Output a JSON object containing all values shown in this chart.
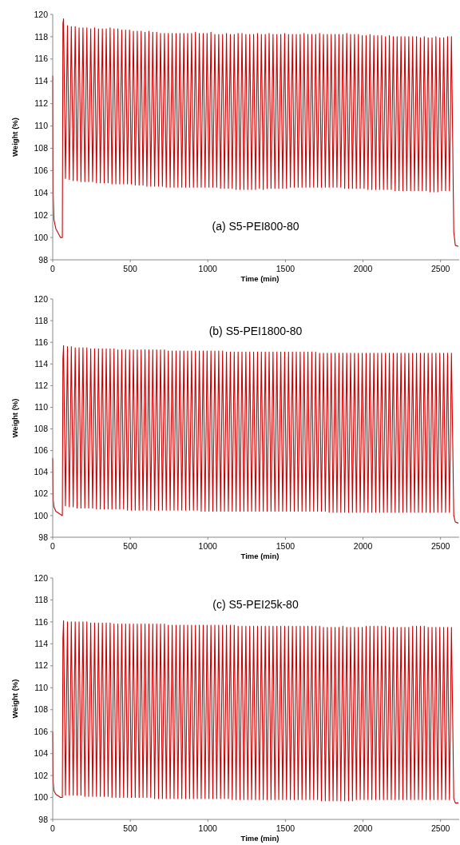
{
  "chart_data": [
    {
      "type": "line",
      "title": "(a) S5-PEI800-80",
      "xlabel": "Time (min)",
      "ylabel": "Weight (%)",
      "xlim": [
        0,
        2620
      ],
      "ylim": [
        98,
        120
      ],
      "xticks": [
        0,
        500,
        1000,
        1500,
        2000,
        2500
      ],
      "yticks": [
        98,
        100,
        102,
        104,
        106,
        108,
        110,
        112,
        114,
        116,
        118,
        120
      ],
      "x": [
        0,
        3,
        8,
        20,
        50,
        62,
        66,
        70,
        82,
        95,
        107,
        120,
        132,
        145,
        157,
        170,
        182,
        195,
        207,
        220,
        232,
        245,
        257,
        270,
        282,
        295,
        307,
        320,
        332,
        345,
        357,
        370,
        382,
        395,
        407,
        420,
        432,
        445,
        457,
        470,
        482,
        495,
        507,
        520,
        532,
        545,
        557,
        570,
        582,
        595,
        607,
        620,
        632,
        645,
        657,
        670,
        682,
        695,
        707,
        720,
        732,
        745,
        757,
        770,
        782,
        795,
        807,
        820,
        832,
        845,
        857,
        870,
        882,
        895,
        907,
        920,
        932,
        945,
        957,
        970,
        982,
        995,
        1007,
        1020,
        1032,
        1045,
        1057,
        1070,
        1082,
        1095,
        1107,
        1120,
        1132,
        1145,
        1157,
        1170,
        1182,
        1195,
        1207,
        1220,
        1232,
        1245,
        1257,
        1270,
        1282,
        1295,
        1307,
        1320,
        1332,
        1345,
        1357,
        1370,
        1382,
        1395,
        1407,
        1420,
        1432,
        1445,
        1457,
        1470,
        1482,
        1495,
        1507,
        1520,
        1532,
        1545,
        1557,
        1570,
        1582,
        1595,
        1607,
        1620,
        1632,
        1645,
        1657,
        1670,
        1682,
        1695,
        1707,
        1720,
        1732,
        1745,
        1757,
        1770,
        1782,
        1795,
        1807,
        1820,
        1832,
        1845,
        1857,
        1870,
        1882,
        1895,
        1907,
        1920,
        1932,
        1945,
        1957,
        1970,
        1982,
        1995,
        2007,
        2020,
        2032,
        2045,
        2057,
        2070,
        2082,
        2095,
        2107,
        2120,
        2132,
        2145,
        2157,
        2170,
        2182,
        2195,
        2207,
        2220,
        2232,
        2245,
        2257,
        2270,
        2282,
        2295,
        2307,
        2320,
        2332,
        2345,
        2357,
        2370,
        2382,
        2395,
        2407,
        2420,
        2432,
        2445,
        2457,
        2470,
        2482,
        2495,
        2507,
        2520,
        2532,
        2545,
        2557,
        2570,
        2585,
        2595,
        2615
      ],
      "series": [
        {
          "color": "#cc0000",
          "values": [
            114.5,
            104,
            101.6,
            100.8,
            100,
            100,
            119.2,
            119.6,
            105.3,
            119.0,
            105.2,
            118.9,
            105.1,
            118.9,
            105.1,
            118.8,
            105.0,
            118.8,
            105.0,
            118.8,
            105.0,
            118.7,
            105.0,
            118.8,
            104.9,
            118.7,
            104.9,
            118.7,
            104.9,
            118.7,
            104.9,
            118.8,
            104.8,
            118.7,
            104.8,
            118.7,
            104.8,
            118.6,
            104.8,
            118.6,
            104.8,
            118.6,
            104.8,
            118.5,
            104.7,
            118.5,
            104.7,
            118.5,
            104.7,
            118.4,
            104.6,
            118.5,
            104.6,
            118.4,
            104.6,
            118.4,
            104.6,
            118.3,
            104.6,
            118.3,
            104.5,
            118.3,
            104.5,
            118.3,
            104.5,
            118.3,
            104.5,
            118.3,
            104.5,
            118.3,
            104.5,
            118.3,
            104.5,
            118.3,
            104.5,
            118.4,
            104.5,
            118.3,
            104.5,
            118.3,
            104.5,
            118.3,
            104.5,
            118.4,
            104.5,
            118.2,
            104.5,
            118.2,
            104.4,
            118.2,
            104.4,
            118.3,
            104.4,
            118.2,
            104.4,
            118.2,
            104.3,
            118.3,
            104.3,
            118.3,
            104.3,
            118.2,
            104.3,
            118.2,
            104.3,
            118.2,
            104.3,
            118.3,
            104.4,
            118.2,
            104.3,
            118.2,
            104.4,
            118.3,
            104.4,
            118.2,
            104.4,
            118.2,
            104.4,
            118.2,
            104.4,
            118.3,
            104.4,
            118.2,
            104.5,
            118.2,
            104.5,
            118.2,
            104.5,
            118.2,
            104.5,
            118.3,
            104.5,
            118.2,
            104.5,
            118.2,
            104.5,
            118.2,
            104.5,
            118.3,
            104.5,
            118.2,
            104.5,
            118.2,
            104.5,
            118.2,
            104.5,
            118.2,
            104.5,
            118.2,
            104.5,
            118.2,
            104.4,
            118.3,
            104.4,
            118.2,
            104.4,
            118.2,
            104.4,
            118.2,
            104.4,
            118.1,
            104.4,
            118.1,
            104.3,
            118.2,
            104.3,
            118.1,
            104.3,
            118.1,
            104.3,
            118.1,
            104.3,
            118.0,
            104.3,
            118.1,
            104.3,
            118.0,
            104.2,
            118.0,
            104.2,
            118.0,
            104.2,
            118.0,
            104.2,
            118.0,
            104.2,
            118.0,
            104.2,
            118.0,
            104.2,
            117.9,
            104.2,
            118.0,
            104.2,
            117.9,
            104.1,
            117.9,
            104.1,
            118.0,
            104.1,
            117.9,
            104.2,
            117.9,
            104.2,
            118.0,
            104.2,
            118.0,
            100.5,
            99.3,
            99.2
          ]
        }
      ]
    },
    {
      "type": "line",
      "title": "(b) S5-PEI1800-80",
      "xlabel": "Time (min)",
      "ylabel": "Weight (%)",
      "xlim": [
        0,
        2620
      ],
      "ylim": [
        98,
        120
      ],
      "xticks": [
        0,
        500,
        1000,
        1500,
        2000,
        2500
      ],
      "yticks": [
        98,
        100,
        102,
        104,
        106,
        108,
        110,
        112,
        114,
        116,
        118,
        120
      ],
      "x": [
        0,
        3,
        8,
        20,
        50,
        62,
        66,
        70,
        82,
        95,
        107,
        120,
        132,
        145,
        157,
        170,
        182,
        195,
        207,
        220,
        232,
        245,
        257,
        270,
        282,
        295,
        307,
        320,
        332,
        345,
        357,
        370,
        382,
        395,
        407,
        420,
        432,
        445,
        457,
        470,
        482,
        495,
        507,
        520,
        532,
        545,
        557,
        570,
        582,
        595,
        607,
        620,
        632,
        645,
        657,
        670,
        682,
        695,
        707,
        720,
        732,
        745,
        757,
        770,
        782,
        795,
        807,
        820,
        832,
        845,
        857,
        870,
        882,
        895,
        907,
        920,
        932,
        945,
        957,
        970,
        982,
        995,
        1007,
        1020,
        1032,
        1045,
        1057,
        1070,
        1082,
        1095,
        1107,
        1120,
        1132,
        1145,
        1157,
        1170,
        1182,
        1195,
        1207,
        1220,
        1232,
        1245,
        1257,
        1270,
        1282,
        1295,
        1307,
        1320,
        1332,
        1345,
        1357,
        1370,
        1382,
        1395,
        1407,
        1420,
        1432,
        1445,
        1457,
        1470,
        1482,
        1495,
        1507,
        1520,
        1532,
        1545,
        1557,
        1570,
        1582,
        1595,
        1607,
        1620,
        1632,
        1645,
        1657,
        1670,
        1682,
        1695,
        1707,
        1720,
        1732,
        1745,
        1757,
        1770,
        1782,
        1795,
        1807,
        1820,
        1832,
        1845,
        1857,
        1870,
        1882,
        1895,
        1907,
        1920,
        1932,
        1945,
        1957,
        1970,
        1982,
        1995,
        2007,
        2020,
        2032,
        2045,
        2057,
        2070,
        2082,
        2095,
        2107,
        2120,
        2132,
        2145,
        2157,
        2170,
        2182,
        2195,
        2207,
        2220,
        2232,
        2245,
        2257,
        2270,
        2282,
        2295,
        2307,
        2320,
        2332,
        2345,
        2357,
        2370,
        2382,
        2395,
        2407,
        2420,
        2432,
        2445,
        2457,
        2470,
        2482,
        2495,
        2507,
        2520,
        2532,
        2545,
        2557,
        2570,
        2585,
        2595,
        2615
      ],
      "series": [
        {
          "color": "#cc0000",
          "values": [
            105.3,
            101.5,
            100.8,
            100.4,
            100.1,
            100.0,
            114.5,
            115.7,
            100.9,
            115.6,
            100.8,
            115.6,
            100.8,
            115.5,
            100.7,
            115.5,
            100.7,
            115.5,
            100.7,
            115.5,
            100.7,
            115.4,
            100.7,
            115.4,
            100.6,
            115.4,
            100.6,
            115.4,
            100.6,
            115.4,
            100.6,
            115.4,
            100.6,
            115.4,
            100.6,
            115.3,
            100.6,
            115.3,
            100.6,
            115.3,
            100.5,
            115.3,
            100.5,
            115.3,
            100.5,
            115.3,
            100.5,
            115.3,
            100.5,
            115.3,
            100.5,
            115.3,
            100.5,
            115.3,
            100.5,
            115.3,
            100.5,
            115.3,
            100.5,
            115.3,
            100.5,
            115.2,
            100.5,
            115.2,
            100.5,
            115.2,
            100.5,
            115.2,
            100.5,
            115.2,
            100.5,
            115.2,
            100.5,
            115.2,
            100.5,
            115.2,
            100.5,
            115.2,
            100.4,
            115.2,
            100.4,
            115.2,
            100.4,
            115.2,
            100.4,
            115.2,
            100.4,
            115.2,
            100.4,
            115.2,
            100.4,
            115.1,
            100.4,
            115.1,
            100.4,
            115.1,
            100.4,
            115.1,
            100.4,
            115.1,
            100.4,
            115.1,
            100.4,
            115.1,
            100.4,
            115.1,
            100.4,
            115.1,
            100.4,
            115.1,
            100.4,
            115.1,
            100.4,
            115.1,
            100.4,
            115.1,
            100.4,
            115.1,
            100.4,
            115.1,
            100.4,
            115.1,
            100.4,
            115.1,
            100.4,
            115.1,
            100.4,
            115.1,
            100.4,
            115.1,
            100.4,
            115.1,
            100.4,
            115.1,
            100.4,
            115.1,
            100.4,
            115.1,
            100.4,
            115.0,
            100.4,
            115.0,
            100.4,
            115.0,
            100.3,
            115.0,
            100.3,
            115.0,
            100.3,
            115.0,
            100.3,
            115.0,
            100.3,
            115.0,
            100.3,
            115.0,
            100.3,
            115.0,
            100.3,
            115.0,
            100.3,
            115.0,
            100.3,
            115.0,
            100.3,
            115.0,
            100.3,
            115.0,
            100.3,
            115.0,
            100.3,
            115.0,
            100.3,
            115.0,
            100.3,
            115.0,
            100.3,
            115.0,
            100.3,
            115.0,
            100.3,
            115.0,
            100.3,
            115.0,
            100.3,
            115.0,
            100.3,
            115.0,
            100.3,
            115.0,
            100.3,
            115.0,
            100.3,
            115.0,
            100.3,
            115.0,
            100.3,
            115.0,
            100.3,
            115.0,
            100.3,
            115.0,
            100.3,
            115.0,
            100.3,
            115.0,
            100.3,
            115.0,
            100.0,
            99.4,
            99.3
          ]
        }
      ]
    },
    {
      "type": "line",
      "title": "(c) S5-PEI25k-80",
      "xlabel": "Time (min)",
      "ylabel": "Weight (%)",
      "xlim": [
        0,
        2620
      ],
      "ylim": [
        98,
        120
      ],
      "xticks": [
        0,
        500,
        1000,
        1500,
        2000,
        2500
      ],
      "yticks": [
        98,
        100,
        102,
        104,
        106,
        108,
        110,
        112,
        114,
        116,
        118,
        120
      ],
      "x": [
        0,
        3,
        8,
        20,
        50,
        62,
        66,
        70,
        82,
        95,
        107,
        120,
        132,
        145,
        157,
        170,
        182,
        195,
        207,
        220,
        232,
        245,
        257,
        270,
        282,
        295,
        307,
        320,
        332,
        345,
        357,
        370,
        382,
        395,
        407,
        420,
        432,
        445,
        457,
        470,
        482,
        495,
        507,
        520,
        532,
        545,
        557,
        570,
        582,
        595,
        607,
        620,
        632,
        645,
        657,
        670,
        682,
        695,
        707,
        720,
        732,
        745,
        757,
        770,
        782,
        795,
        807,
        820,
        832,
        845,
        857,
        870,
        882,
        895,
        907,
        920,
        932,
        945,
        957,
        970,
        982,
        995,
        1007,
        1020,
        1032,
        1045,
        1057,
        1070,
        1082,
        1095,
        1107,
        1120,
        1132,
        1145,
        1157,
        1170,
        1182,
        1195,
        1207,
        1220,
        1232,
        1245,
        1257,
        1270,
        1282,
        1295,
        1307,
        1320,
        1332,
        1345,
        1357,
        1370,
        1382,
        1395,
        1407,
        1420,
        1432,
        1445,
        1457,
        1470,
        1482,
        1495,
        1507,
        1520,
        1532,
        1545,
        1557,
        1570,
        1582,
        1595,
        1607,
        1620,
        1632,
        1645,
        1657,
        1670,
        1682,
        1695,
        1707,
        1720,
        1732,
        1745,
        1757,
        1770,
        1782,
        1795,
        1807,
        1820,
        1832,
        1845,
        1857,
        1870,
        1882,
        1895,
        1907,
        1920,
        1932,
        1945,
        1957,
        1970,
        1982,
        1995,
        2007,
        2020,
        2032,
        2045,
        2057,
        2070,
        2082,
        2095,
        2107,
        2120,
        2132,
        2145,
        2157,
        2170,
        2182,
        2195,
        2207,
        2220,
        2232,
        2245,
        2257,
        2270,
        2282,
        2295,
        2307,
        2320,
        2332,
        2345,
        2357,
        2370,
        2382,
        2395,
        2407,
        2420,
        2432,
        2445,
        2457,
        2470,
        2482,
        2495,
        2507,
        2520,
        2532,
        2545,
        2557,
        2570,
        2585,
        2595,
        2615
      ],
      "series": [
        {
          "color": "#cc0000",
          "values": [
            106.0,
            101.5,
            100.6,
            100.3,
            100.0,
            100.0,
            114.5,
            116.1,
            100.2,
            116.0,
            100.2,
            116.0,
            100.2,
            116.0,
            100.2,
            116.0,
            100.2,
            116.0,
            100.1,
            116.0,
            100.1,
            115.9,
            100.1,
            115.9,
            100.1,
            115.9,
            100.1,
            115.9,
            100.1,
            115.9,
            100.1,
            115.9,
            100.0,
            115.8,
            100.0,
            115.8,
            100.0,
            115.8,
            100.0,
            115.8,
            100.0,
            115.8,
            100.0,
            115.8,
            100.0,
            115.8,
            100.0,
            115.8,
            100.0,
            115.8,
            100.0,
            115.8,
            100.0,
            115.8,
            99.9,
            115.8,
            99.9,
            115.8,
            99.9,
            115.8,
            99.9,
            115.7,
            99.9,
            115.7,
            99.9,
            115.7,
            99.9,
            115.7,
            99.9,
            115.7,
            99.9,
            115.7,
            99.9,
            115.7,
            99.9,
            115.7,
            99.9,
            115.7,
            99.9,
            115.7,
            99.9,
            115.7,
            99.9,
            115.7,
            99.9,
            115.7,
            99.9,
            115.7,
            99.9,
            115.7,
            99.9,
            115.7,
            99.9,
            115.7,
            99.8,
            115.7,
            99.8,
            115.6,
            99.8,
            115.6,
            99.8,
            115.6,
            99.8,
            115.6,
            99.8,
            115.6,
            99.8,
            115.6,
            99.8,
            115.6,
            99.8,
            115.6,
            99.8,
            115.6,
            99.8,
            115.6,
            99.8,
            115.6,
            99.8,
            115.6,
            99.8,
            115.6,
            99.8,
            115.6,
            99.8,
            115.6,
            99.8,
            115.6,
            99.8,
            115.6,
            99.8,
            115.6,
            99.8,
            115.6,
            99.8,
            115.6,
            99.8,
            115.6,
            99.8,
            115.6,
            99.7,
            115.5,
            99.7,
            115.5,
            99.7,
            115.5,
            99.7,
            115.5,
            99.7,
            115.5,
            99.7,
            115.6,
            99.7,
            115.5,
            99.7,
            115.5,
            99.7,
            115.5,
            99.8,
            115.5,
            99.8,
            115.5,
            99.8,
            115.6,
            99.8,
            115.6,
            99.8,
            115.6,
            99.8,
            115.6,
            99.8,
            115.6,
            99.8,
            115.6,
            99.8,
            115.5,
            99.8,
            115.5,
            99.8,
            115.5,
            99.8,
            115.5,
            99.8,
            115.5,
            99.8,
            115.5,
            99.8,
            115.6,
            99.8,
            115.6,
            99.8,
            115.6,
            99.8,
            115.6,
            99.8,
            115.5,
            99.8,
            115.5,
            99.8,
            115.5,
            99.8,
            115.5,
            99.8,
            115.5,
            99.8,
            115.5,
            99.8,
            115.5,
            99.9,
            99.5,
            99.5
          ]
        }
      ]
    }
  ]
}
